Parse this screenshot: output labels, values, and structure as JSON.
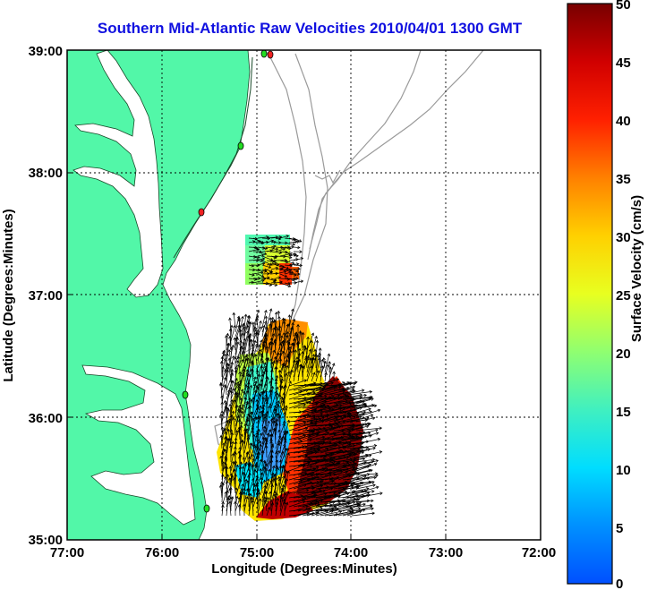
{
  "title": "Southern Mid-Atlantic Raw Velocities 2010/04/01 1300 GMT",
  "xlabel": "Longitude (Degrees:Minutes)",
  "ylabel": "Latitude (Degrees:Minutes)",
  "xticks": [
    "77:00",
    "76:00",
    "75:00",
    "74:00",
    "73:00",
    "72:00"
  ],
  "yticks": [
    "39:00",
    "38:00",
    "37:00",
    "36:00",
    "35:00"
  ],
  "colorbar": {
    "label": "Surface Velocity (cm/s)",
    "ticks": [
      "50",
      "45",
      "40",
      "35",
      "30",
      "25",
      "20",
      "15",
      "10",
      "5",
      "0"
    ],
    "min": 0,
    "max": 50
  },
  "colors": {
    "land": "#52f7a8",
    "ocean": "#ffffff",
    "title": "#1010e0",
    "bathymetry": "#9a9a9a",
    "station_active": "#22dd22",
    "station_other": "#ee2222"
  }
}
